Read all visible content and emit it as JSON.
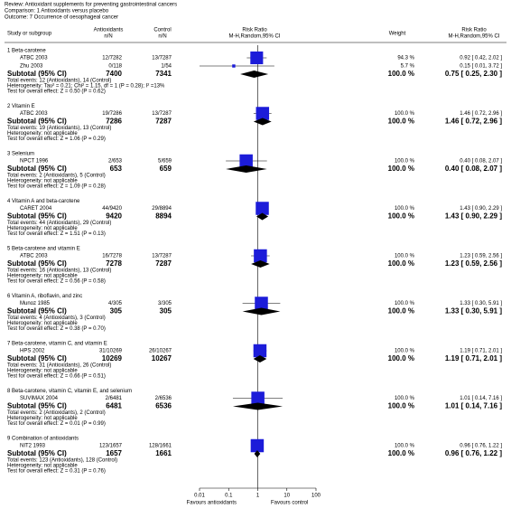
{
  "chart_data": {
    "type": "forest",
    "header": [
      "Review:   Antioxidant supplements for preventing gastrointestinal cancers",
      "Comparison:   1 Antioxidants versus placebo",
      "Outcome:   7 Occurrence of oesophageal cancer"
    ],
    "columns": {
      "study": "Study or subgroup",
      "treatment": "Antioxidants",
      "treatment_sub": "n/N",
      "control": "Control",
      "control_sub": "n/N",
      "plot": "Risk Ratio",
      "plot_sub": "M-H,Random,95% CI",
      "weight": "Weight",
      "ratio": "Risk Ratio",
      "ratio_sub": "M-H,Random,95% CI"
    },
    "log_scale": true,
    "xlim": [
      0.01,
      100
    ],
    "xticks": [
      0.01,
      0.1,
      1,
      10,
      100
    ],
    "square_color": "#1c1cd9",
    "diamond_color": "#000000",
    "favours_left": "Favours antioxidants",
    "favours_right": "Favours control",
    "groups": [
      {
        "title": "1 Beta-carotene",
        "studies": [
          {
            "name": "ATBC 2003",
            "treatment": "12/7282",
            "control": "13/7287",
            "weight": 94.3,
            "weight_label": "94.3 %",
            "rr": 0.92,
            "lo": 0.42,
            "hi": 2.02,
            "ci_label": "0.92 [ 0.42, 2.02 ]"
          },
          {
            "name": "Zhu 2003",
            "treatment": "0/118",
            "control": "1/54",
            "weight": 5.7,
            "weight_label": "5.7 %",
            "rr": 0.15,
            "lo": 0.01,
            "hi": 3.72,
            "ci_label": "0.15 [ 0.01, 3.72 ]"
          }
        ],
        "subtotal": {
          "label": "Subtotal (95% CI)",
          "treatment": 7400,
          "control": 7341,
          "weight_label": "100.0 %",
          "rr": 0.75,
          "lo": 0.25,
          "hi": 2.3,
          "ci_label": "0.75 [ 0.25, 2.30 ]"
        },
        "notes": [
          "Total events: 12 (Antioxidants), 14 (Control)",
          "Heterogeneity: Tau² = 0.21; Chi² = 1.15, df = 1 (P = 0.28); I² =13%",
          "Test for overall effect: Z = 0.50 (P = 0.62)"
        ]
      },
      {
        "title": "2 Vitamin E",
        "studies": [
          {
            "name": "ATBC 2003",
            "treatment": "19/7286",
            "control": "13/7287",
            "weight": 100.0,
            "weight_label": "100.0 %",
            "rr": 1.46,
            "lo": 0.72,
            "hi": 2.96,
            "ci_label": "1.46 [ 0.72, 2.96 ]"
          }
        ],
        "subtotal": {
          "label": "Subtotal (95% CI)",
          "treatment": 7286,
          "control": 7287,
          "weight_label": "100.0 %",
          "rr": 1.46,
          "lo": 0.72,
          "hi": 2.96,
          "ci_label": "1.46 [ 0.72, 2.96 ]"
        },
        "notes": [
          "Total events: 19 (Antioxidants), 13 (Control)",
          "Heterogeneity: not applicable",
          "Test for overall effect: Z = 1.06 (P = 0.29)"
        ]
      },
      {
        "title": "3 Selenium",
        "studies": [
          {
            "name": "NPCT 1996",
            "treatment": "2/653",
            "control": "5/659",
            "weight": 100.0,
            "weight_label": "100.0 %",
            "rr": 0.4,
            "lo": 0.08,
            "hi": 2.07,
            "ci_label": "0.40 [ 0.08, 2.07 ]"
          }
        ],
        "subtotal": {
          "label": "Subtotal (95% CI)",
          "treatment": 653,
          "control": 659,
          "weight_label": "100.0 %",
          "rr": 0.4,
          "lo": 0.08,
          "hi": 2.07,
          "ci_label": "0.40 [ 0.08, 2.07 ]"
        },
        "notes": [
          "Total events: 2 (Antioxidants), 5 (Control)",
          "Heterogeneity: not applicable",
          "Test for overall effect: Z = 1.09 (P = 0.28)"
        ]
      },
      {
        "title": "4 Vitamin A and beta-carotene",
        "studies": [
          {
            "name": "CARET 2004",
            "treatment": "44/9420",
            "control": "29/8894",
            "weight": 100.0,
            "weight_label": "100.0 %",
            "rr": 1.43,
            "lo": 0.9,
            "hi": 2.29,
            "ci_label": "1.43 [ 0.90, 2.29 ]"
          }
        ],
        "subtotal": {
          "label": "Subtotal (95% CI)",
          "treatment": 9420,
          "control": 8894,
          "weight_label": "100.0 %",
          "rr": 1.43,
          "lo": 0.9,
          "hi": 2.29,
          "ci_label": "1.43 [ 0.90, 2.29 ]"
        },
        "notes": [
          "Total events: 44 (Antioxidants), 29 (Control)",
          "Heterogeneity: not applicable",
          "Test for overall effect: Z = 1.51 (P = 0.13)"
        ]
      },
      {
        "title": "5 Beta-carotene and vitamin E",
        "studies": [
          {
            "name": "ATBC 2003",
            "treatment": "16/7278",
            "control": "13/7287",
            "weight": 100.0,
            "weight_label": "100.0 %",
            "rr": 1.23,
            "lo": 0.59,
            "hi": 2.56,
            "ci_label": "1.23 [ 0.59, 2.56 ]"
          }
        ],
        "subtotal": {
          "label": "Subtotal (95% CI)",
          "treatment": 7278,
          "control": 7287,
          "weight_label": "100.0 %",
          "rr": 1.23,
          "lo": 0.59,
          "hi": 2.56,
          "ci_label": "1.23 [ 0.59, 2.56 ]"
        },
        "notes": [
          "Total events: 16 (Antioxidants), 13 (Control)",
          "Heterogeneity: not applicable",
          "Test for overall effect: Z = 0.56 (P = 0.58)"
        ]
      },
      {
        "title": "6 Vitamin A, riboflavin, and zinc",
        "studies": [
          {
            "name": "Munoz 1985",
            "treatment": "4/305",
            "control": "3/305",
            "weight": 100.0,
            "weight_label": "100.0 %",
            "rr": 1.33,
            "lo": 0.3,
            "hi": 5.91,
            "ci_label": "1.33 [ 0.30, 5.91 ]"
          }
        ],
        "subtotal": {
          "label": "Subtotal (95% CI)",
          "treatment": 305,
          "control": 305,
          "weight_label": "100.0 %",
          "rr": 1.33,
          "lo": 0.3,
          "hi": 5.91,
          "ci_label": "1.33 [ 0.30, 5.91 ]"
        },
        "notes": [
          "Total events: 4 (Antioxidants), 3 (Control)",
          "Heterogeneity: not applicable",
          "Test for overall effect: Z = 0.38 (P = 0.70)"
        ]
      },
      {
        "title": "7 Beta-carotene, vitamin C, and vitamin E",
        "studies": [
          {
            "name": "HPS 2002",
            "treatment": "31/10269",
            "control": "26/10267",
            "weight": 100.0,
            "weight_label": "100.0 %",
            "rr": 1.19,
            "lo": 0.71,
            "hi": 2.01,
            "ci_label": "1.19 [ 0.71, 2.01 ]"
          }
        ],
        "subtotal": {
          "label": "Subtotal (95% CI)",
          "treatment": 10269,
          "control": 10267,
          "weight_label": "100.0 %",
          "rr": 1.19,
          "lo": 0.71,
          "hi": 2.01,
          "ci_label": "1.19 [ 0.71, 2.01 ]"
        },
        "notes": [
          "Total events: 31 (Antioxidants), 26 (Control)",
          "Heterogeneity: not applicable",
          "Test for overall effect: Z = 0.66 (P = 0.51)"
        ]
      },
      {
        "title": "8 Beta-carotene, vitamin C, vitamin E, and selenium",
        "studies": [
          {
            "name": "SUVIMAX 2004",
            "treatment": "2/6481",
            "control": "2/6536",
            "weight": 100.0,
            "weight_label": "100.0 %",
            "rr": 1.01,
            "lo": 0.14,
            "hi": 7.16,
            "ci_label": "1.01 [ 0.14, 7.16 ]"
          }
        ],
        "subtotal": {
          "label": "Subtotal (95% CI)",
          "treatment": 6481,
          "control": 6536,
          "weight_label": "100.0 %",
          "rr": 1.01,
          "lo": 0.14,
          "hi": 7.16,
          "ci_label": "1.01 [ 0.14, 7.16 ]"
        },
        "notes": [
          "Total events: 2 (Antioxidants), 2 (Control)",
          "Heterogeneity: not applicable",
          "Test for overall effect: Z = 0.01 (P = 0.99)"
        ]
      },
      {
        "title": "9 Combination of antioxidants",
        "studies": [
          {
            "name": "NIT2 1993",
            "treatment": "123/1657",
            "control": "128/1661",
            "weight": 100.0,
            "weight_label": "100.0 %",
            "rr": 0.96,
            "lo": 0.76,
            "hi": 1.22,
            "ci_label": "0.96 [ 0.76, 1.22 ]"
          }
        ],
        "subtotal": {
          "label": "Subtotal (95% CI)",
          "treatment": 1657,
          "control": 1661,
          "weight_label": "100.0 %",
          "rr": 0.96,
          "lo": 0.76,
          "hi": 1.22,
          "ci_label": "0.96 [ 0.76, 1.22 ]"
        },
        "notes": [
          "Total events: 123 (Antioxidants), 128 (Control)",
          "Heterogeneity: not applicable",
          "Test for overall effect: Z = 0.31 (P = 0.76)"
        ]
      }
    ]
  }
}
